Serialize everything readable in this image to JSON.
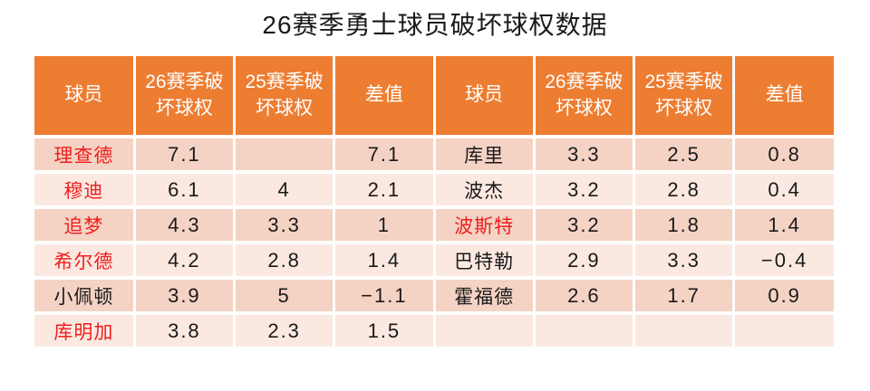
{
  "title": "26赛季勇士球员破坏球权数据",
  "colors": {
    "header_bg": "#ED7D31",
    "row_band_dark": "#F5D3C4",
    "row_band_light": "#FBE9E1",
    "highlight_name_red": "#F01E1E",
    "text_black": "#1A1A1A",
    "header_text": "#FFFFFF",
    "grid_line": "#FFFFFF"
  },
  "table": {
    "headers": [
      "球员",
      "26赛季破坏球权",
      "25赛季破坏球权",
      "差值",
      "球员",
      "26赛季破坏球权",
      "25赛季破坏球权",
      "差值"
    ],
    "rows": [
      {
        "cells": [
          {
            "t": "理查德",
            "red": true
          },
          {
            "t": "7.1"
          },
          {
            "t": ""
          },
          {
            "t": "7.1"
          },
          {
            "t": "库里"
          },
          {
            "t": "3.3"
          },
          {
            "t": "2.5"
          },
          {
            "t": "0.8"
          }
        ]
      },
      {
        "cells": [
          {
            "t": "穆迪",
            "red": true
          },
          {
            "t": "6.1"
          },
          {
            "t": "4"
          },
          {
            "t": "2.1"
          },
          {
            "t": "波杰"
          },
          {
            "t": "3.2"
          },
          {
            "t": "2.8"
          },
          {
            "t": "0.4"
          }
        ]
      },
      {
        "cells": [
          {
            "t": "追梦",
            "red": true
          },
          {
            "t": "4.3"
          },
          {
            "t": "3.3"
          },
          {
            "t": "1"
          },
          {
            "t": "波斯特",
            "red": true
          },
          {
            "t": "3.2"
          },
          {
            "t": "1.8"
          },
          {
            "t": "1.4"
          }
        ]
      },
      {
        "cells": [
          {
            "t": "希尔德",
            "red": true
          },
          {
            "t": "4.2"
          },
          {
            "t": "2.8"
          },
          {
            "t": "1.4"
          },
          {
            "t": "巴特勒"
          },
          {
            "t": "2.9"
          },
          {
            "t": "3.3"
          },
          {
            "t": "−0.4"
          }
        ]
      },
      {
        "cells": [
          {
            "t": "小佩顿"
          },
          {
            "t": "3.9"
          },
          {
            "t": "5"
          },
          {
            "t": "−1.1"
          },
          {
            "t": "霍福德"
          },
          {
            "t": "2.6"
          },
          {
            "t": "1.7"
          },
          {
            "t": "0.9"
          }
        ]
      },
      {
        "cells": [
          {
            "t": "库明加",
            "red": true
          },
          {
            "t": "3.8"
          },
          {
            "t": "2.3"
          },
          {
            "t": "1.5"
          },
          {
            "t": ""
          },
          {
            "t": ""
          },
          {
            "t": ""
          },
          {
            "t": ""
          }
        ]
      }
    ]
  },
  "chart_data": {
    "type": "table",
    "title": "26赛季勇士球员破坏球权数据",
    "columns": [
      "球员",
      "26赛季破坏球权",
      "25赛季破坏球权",
      "差值"
    ],
    "rows": [
      {
        "player": "理查德",
        "s26": 7.1,
        "s25": null,
        "diff": 7.1,
        "highlighted": true
      },
      {
        "player": "穆迪",
        "s26": 6.1,
        "s25": 4,
        "diff": 2.1,
        "highlighted": true
      },
      {
        "player": "追梦",
        "s26": 4.3,
        "s25": 3.3,
        "diff": 1,
        "highlighted": true
      },
      {
        "player": "希尔德",
        "s26": 4.2,
        "s25": 2.8,
        "diff": 1.4,
        "highlighted": true
      },
      {
        "player": "小佩顿",
        "s26": 3.9,
        "s25": 5,
        "diff": -1.1,
        "highlighted": false
      },
      {
        "player": "库明加",
        "s26": 3.8,
        "s25": 2.3,
        "diff": 1.5,
        "highlighted": true
      },
      {
        "player": "库里",
        "s26": 3.3,
        "s25": 2.5,
        "diff": 0.8,
        "highlighted": false
      },
      {
        "player": "波杰",
        "s26": 3.2,
        "s25": 2.8,
        "diff": 0.4,
        "highlighted": false
      },
      {
        "player": "波斯特",
        "s26": 3.2,
        "s25": 1.8,
        "diff": 1.4,
        "highlighted": true
      },
      {
        "player": "巴特勒",
        "s26": 2.9,
        "s25": 3.3,
        "diff": -0.4,
        "highlighted": false
      },
      {
        "player": "霍福德",
        "s26": 2.6,
        "s25": 1.7,
        "diff": 0.9,
        "highlighted": false
      }
    ]
  }
}
